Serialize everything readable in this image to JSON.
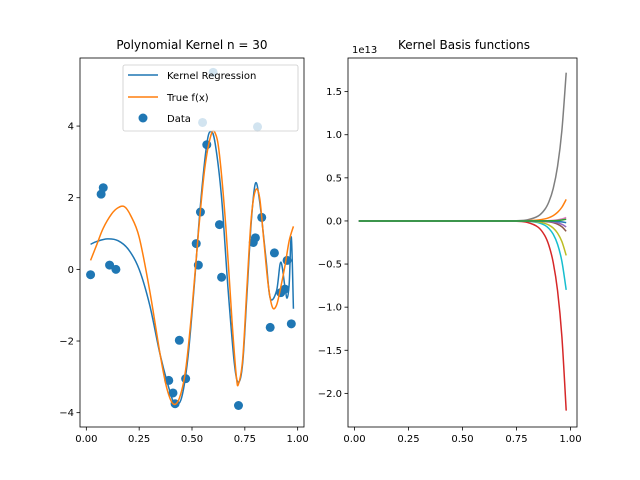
{
  "chart_data": [
    {
      "type": "line",
      "title": "Polynomial Kernel n = 30",
      "xlim": [
        -0.03,
        1.03
      ],
      "ylim": [
        -4.4,
        5.9
      ],
      "x_ticks": [
        0.0,
        0.25,
        0.5,
        0.75,
        1.0
      ],
      "x_tick_labels": [
        "0.00",
        "0.25",
        "0.50",
        "0.75",
        "1.00"
      ],
      "y_ticks": [
        -4,
        -2,
        0,
        2,
        4
      ],
      "y_tick_labels": [
        "−4",
        "−2",
        "0",
        "2",
        "4"
      ],
      "legend": {
        "placement": "top-right",
        "entries": [
          "Kernel Regression",
          "True f(x)",
          "Data"
        ]
      },
      "series": [
        {
          "name": "Kernel Regression",
          "kind": "line",
          "color": "#1f77b4",
          "points": [
            [
              0.02,
              0.7
            ],
            [
              0.05,
              0.78
            ],
            [
              0.1,
              0.85
            ],
            [
              0.15,
              0.8
            ],
            [
              0.2,
              0.55
            ],
            [
              0.25,
              0.0
            ],
            [
              0.3,
              -1.0
            ],
            [
              0.35,
              -2.4
            ],
            [
              0.4,
              -3.5
            ],
            [
              0.42,
              -3.75
            ],
            [
              0.45,
              -3.6
            ],
            [
              0.48,
              -2.5
            ],
            [
              0.51,
              -0.5
            ],
            [
              0.54,
              1.8
            ],
            [
              0.57,
              3.5
            ],
            [
              0.59,
              3.85
            ],
            [
              0.61,
              3.5
            ],
            [
              0.64,
              2.0
            ],
            [
              0.67,
              -0.5
            ],
            [
              0.7,
              -2.6
            ],
            [
              0.72,
              -3.15
            ],
            [
              0.74,
              -2.6
            ],
            [
              0.76,
              -0.7
            ],
            [
              0.78,
              1.3
            ],
            [
              0.8,
              2.4
            ],
            [
              0.82,
              1.9
            ],
            [
              0.85,
              0.3
            ],
            [
              0.87,
              -0.8
            ],
            [
              0.9,
              -0.6
            ],
            [
              0.92,
              0.2
            ],
            [
              0.94,
              -0.5
            ],
            [
              0.95,
              -0.8
            ],
            [
              0.96,
              -0.4
            ],
            [
              0.97,
              0.9
            ],
            [
              0.98,
              -1.1
            ]
          ]
        },
        {
          "name": "True f(x)",
          "kind": "line",
          "color": "#ff7f0e",
          "points": [
            [
              0.02,
              0.25
            ],
            [
              0.05,
              0.7
            ],
            [
              0.08,
              1.15
            ],
            [
              0.12,
              1.55
            ],
            [
              0.15,
              1.72
            ],
            [
              0.18,
              1.75
            ],
            [
              0.21,
              1.5
            ],
            [
              0.25,
              0.9
            ],
            [
              0.3,
              -0.6
            ],
            [
              0.35,
              -2.4
            ],
            [
              0.38,
              -3.3
            ],
            [
              0.41,
              -3.75
            ],
            [
              0.44,
              -3.6
            ],
            [
              0.47,
              -2.8
            ],
            [
              0.5,
              -1.1
            ],
            [
              0.53,
              1.0
            ],
            [
              0.56,
              2.8
            ],
            [
              0.59,
              3.75
            ],
            [
              0.61,
              3.8
            ],
            [
              0.63,
              3.2
            ],
            [
              0.66,
              1.2
            ],
            [
              0.69,
              -1.5
            ],
            [
              0.71,
              -3.0
            ],
            [
              0.72,
              -3.2
            ],
            [
              0.74,
              -2.5
            ],
            [
              0.76,
              -0.5
            ],
            [
              0.78,
              1.4
            ],
            [
              0.8,
              2.2
            ],
            [
              0.82,
              2.0
            ],
            [
              0.84,
              0.8
            ],
            [
              0.86,
              -0.4
            ],
            [
              0.88,
              -1.05
            ],
            [
              0.9,
              -1.0
            ],
            [
              0.92,
              -0.5
            ],
            [
              0.94,
              0.1
            ],
            [
              0.96,
              0.8
            ],
            [
              0.98,
              1.2
            ]
          ]
        },
        {
          "name": "Data",
          "kind": "scatter",
          "color": "#1f77b4",
          "points": [
            [
              0.02,
              -0.15
            ],
            [
              0.07,
              2.1
            ],
            [
              0.08,
              2.28
            ],
            [
              0.11,
              0.12
            ],
            [
              0.14,
              0.0
            ],
            [
              0.39,
              -3.1
            ],
            [
              0.41,
              -3.45
            ],
            [
              0.42,
              -3.75
            ],
            [
              0.44,
              -1.98
            ],
            [
              0.47,
              -3.05
            ],
            [
              0.52,
              0.72
            ],
            [
              0.53,
              0.12
            ],
            [
              0.54,
              1.6
            ],
            [
              0.55,
              4.1
            ],
            [
              0.57,
              3.48
            ],
            [
              0.6,
              5.5
            ],
            [
              0.63,
              1.25
            ],
            [
              0.64,
              -0.22
            ],
            [
              0.72,
              -3.8
            ],
            [
              0.79,
              0.75
            ],
            [
              0.8,
              0.88
            ],
            [
              0.81,
              3.98
            ],
            [
              0.83,
              1.45
            ],
            [
              0.87,
              -1.62
            ],
            [
              0.89,
              0.46
            ],
            [
              0.92,
              -0.65
            ],
            [
              0.94,
              -0.55
            ],
            [
              0.95,
              0.25
            ],
            [
              0.97,
              -1.52
            ]
          ]
        }
      ]
    },
    {
      "type": "line",
      "title": "Kernel Basis functions",
      "offset_text": "1e13",
      "xlim": [
        -0.03,
        1.03
      ],
      "ylim": [
        -2.39,
        1.89
      ],
      "x_ticks": [
        0.0,
        0.25,
        0.5,
        0.75,
        1.0
      ],
      "x_tick_labels": [
        "0.00",
        "0.25",
        "0.50",
        "0.75",
        "1.00"
      ],
      "y_ticks": [
        -2.0,
        -1.5,
        -1.0,
        -0.5,
        0.0,
        0.5,
        1.0,
        1.5
      ],
      "y_tick_labels": [
        "−2.0",
        "−1.5",
        "−1.0",
        "−0.5",
        "0.0",
        "0.5",
        "1.0",
        "1.5"
      ],
      "basis_x": [
        0.02,
        0.1,
        0.2,
        0.3,
        0.4,
        0.5,
        0.6,
        0.7,
        0.75,
        0.8,
        0.85,
        0.88,
        0.9,
        0.92,
        0.94,
        0.96,
        0.98
      ],
      "series": [
        {
          "color": "#7f7f7f",
          "end_value": 1.72,
          "power": 24
        },
        {
          "color": "#d62728",
          "end_value": -2.2,
          "power": 24
        },
        {
          "color": "#ff7f0e",
          "end_value": 0.25,
          "power": 22
        },
        {
          "color": "#17becf",
          "end_value": -0.8,
          "power": 26
        },
        {
          "color": "#bcbd22",
          "end_value": -0.4,
          "power": 25
        },
        {
          "color": "#8c564b",
          "end_value": -0.12,
          "power": 28
        },
        {
          "color": "#9467bd",
          "end_value": -0.07,
          "power": 28
        },
        {
          "color": "#e377c2",
          "end_value": 0.04,
          "power": 28
        },
        {
          "color": "#1f77b4",
          "end_value": -0.02,
          "power": 30
        },
        {
          "color": "#2ca02c",
          "end_value": 0.02,
          "power": 30
        }
      ]
    }
  ]
}
